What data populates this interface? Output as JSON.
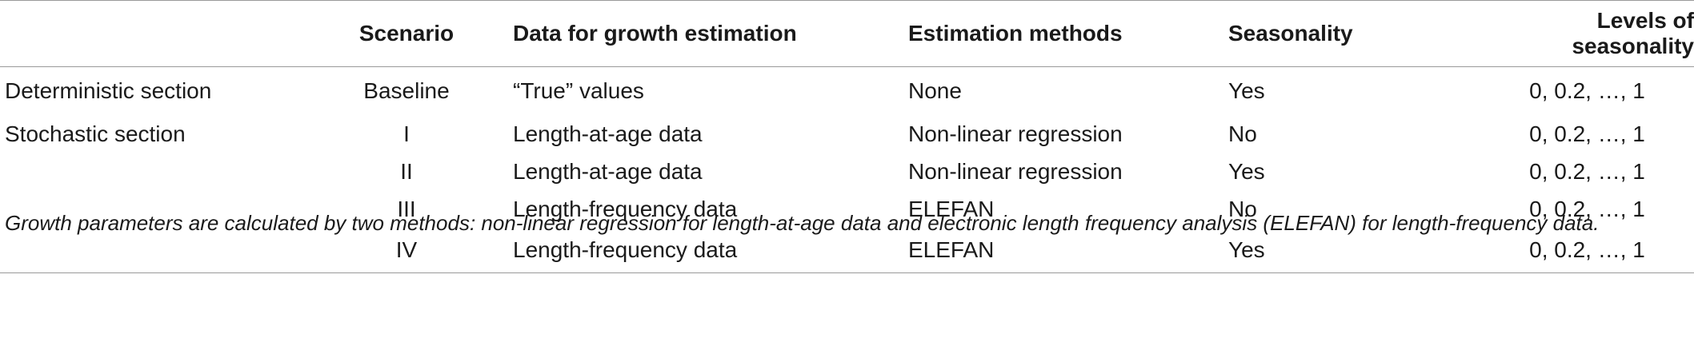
{
  "table": {
    "headers": [
      "",
      "Scenario",
      "Data for growth estimation",
      "Estimation methods",
      "Seasonality",
      "Levels of seasonality"
    ],
    "rows": [
      [
        "Deterministic section",
        "Baseline",
        "“True” values",
        "None",
        "Yes",
        "0, 0.2, …, 1"
      ],
      [
        "Stochastic section",
        "I",
        "Length-at-age data",
        "Non-linear regression",
        "No",
        "0, 0.2, …, 1"
      ],
      [
        "",
        "II",
        "Length-at-age data",
        "Non-linear regression",
        "Yes",
        "0, 0.2, …, 1"
      ],
      [
        "",
        "III",
        "Length-frequency data",
        "ELEFAN",
        "No",
        "0, 0.2, …, 1"
      ],
      [
        "",
        "IV",
        "Length-frequency data",
        "ELEFAN",
        "Yes",
        "0, 0.2, …, 1"
      ]
    ]
  },
  "footnote": "Growth parameters are calculated by two methods: non-linear regression for length-at-age data and electronic length frequency analysis (ELEFAN) for length-frequency data."
}
